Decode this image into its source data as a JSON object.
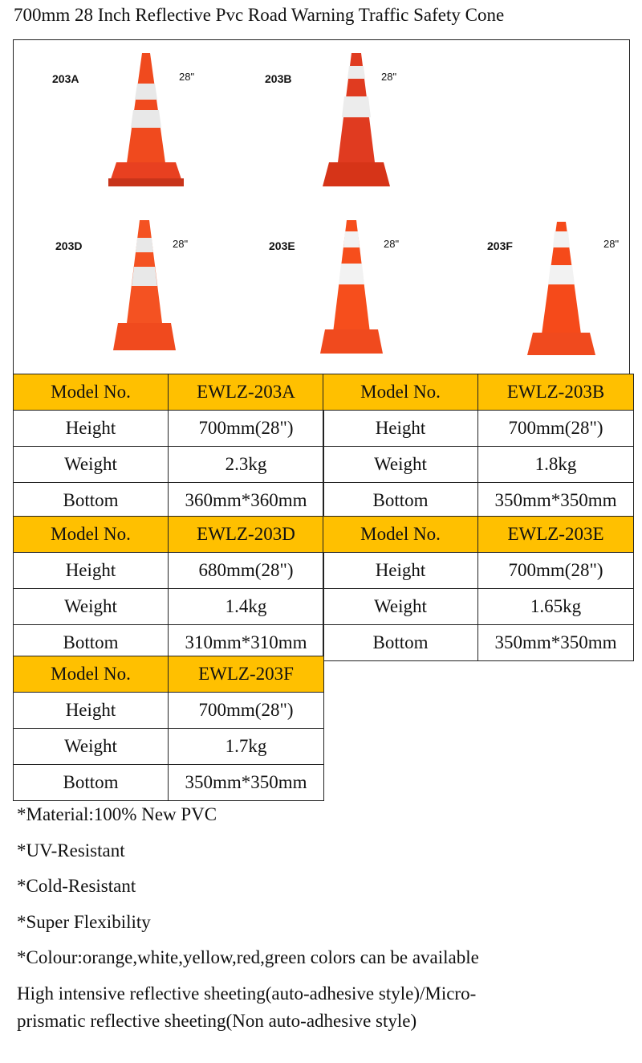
{
  "title": "700mm 28 Inch Reflective Pvc Road Warning Traffic Safety Cone",
  "cones": [
    {
      "code": "203A",
      "size": "28\""
    },
    {
      "code": "203B",
      "size": "28\""
    },
    {
      "code": "203D",
      "size": "28\""
    },
    {
      "code": "203E",
      "size": "28\""
    },
    {
      "code": "203F",
      "size": "28\""
    }
  ],
  "colors": {
    "header": "#ffc000",
    "cone_orange": "#f04a1e",
    "cone_red": "#e03b20",
    "band": "#e8e8e8"
  },
  "tables": [
    {
      "model_label": "Model No.",
      "model": "EWLZ-203A",
      "rows": [
        {
          "label": "Height",
          "value": "700mm(28\")"
        },
        {
          "label": "Weight",
          "value": "2.3kg"
        },
        {
          "label": "Bottom",
          "value": "360mm*360mm"
        }
      ]
    },
    {
      "model_label": "Model No.",
      "model": "EWLZ-203B",
      "rows": [
        {
          "label": "Height",
          "value": "700mm(28\")"
        },
        {
          "label": "Weight",
          "value": "1.8kg"
        },
        {
          "label": "Bottom",
          "value": "350mm*350mm"
        }
      ]
    },
    {
      "model_label": "Model No.",
      "model": "EWLZ-203D",
      "rows": [
        {
          "label": "Height",
          "value": "680mm(28\")"
        },
        {
          "label": "Weight",
          "value": "1.4kg"
        },
        {
          "label": "Bottom",
          "value": "310mm*310mm"
        }
      ]
    },
    {
      "model_label": "Model No.",
      "model": "EWLZ-203E",
      "rows": [
        {
          "label": "Height",
          "value": "700mm(28\")"
        },
        {
          "label": "Weight",
          "value": "1.65kg"
        },
        {
          "label": "Bottom",
          "value": "350mm*350mm"
        }
      ]
    },
    {
      "model_label": "Model No.",
      "model": "EWLZ-203F",
      "rows": [
        {
          "label": "Height",
          "value": "700mm(28\")"
        },
        {
          "label": "Weight",
          "value": "1.7kg"
        },
        {
          "label": "Bottom",
          "value": "350mm*350mm"
        }
      ]
    }
  ],
  "notes": [
    "*Material:100% New PVC",
    "*UV-Resistant",
    "*Cold-Resistant",
    "*Super Flexibility",
    "*Colour:orange,white,yellow,red,green colors can be available"
  ],
  "extra": "High intensive reflective sheeting(auto-adhesive style)/Micro-prismatic reflective sheeting(Non auto-adhesive style)"
}
